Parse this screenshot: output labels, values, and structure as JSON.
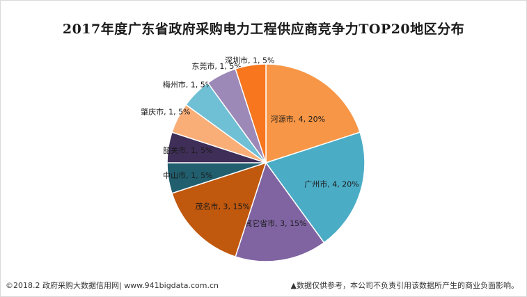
{
  "chart_data": {
    "type": "pie",
    "title": "2017年度广东省政府采购电力工程供应商竞争力TOP20地区分布",
    "slices": [
      {
        "name": "河源市",
        "value": 4,
        "percent": "20%",
        "color": "#f79646"
      },
      {
        "name": "广州市",
        "value": 4,
        "percent": "20%",
        "color": "#4bacc6"
      },
      {
        "name": "其它省市",
        "value": 3,
        "percent": "15%",
        "color": "#8064a2"
      },
      {
        "name": "茂名市",
        "value": 3,
        "percent": "15%",
        "color": "#c0580e"
      },
      {
        "name": "中山市",
        "value": 1,
        "percent": "5%",
        "color": "#215f6e"
      },
      {
        "name": "韶关市",
        "value": 1,
        "percent": "5%",
        "color": "#3f2f58"
      },
      {
        "name": "肇庆市",
        "value": 1,
        "percent": "5%",
        "color": "#f9ae78"
      },
      {
        "name": "梅州市",
        "value": 1,
        "percent": "5%",
        "color": "#6fbfd5"
      },
      {
        "name": "东莞市",
        "value": 1,
        "percent": "5%",
        "color": "#9c89b8"
      },
      {
        "name": "深圳市",
        "value": 1,
        "percent": "5%",
        "color": "#f7761e"
      }
    ]
  },
  "footer": {
    "source": "©2018.2 政府采购大数据信用网| www.941bigdata.com.cn",
    "disclaimer": "▲数据仅供参考，本公司不负责引用该数据所产生的商业负面影响。"
  }
}
